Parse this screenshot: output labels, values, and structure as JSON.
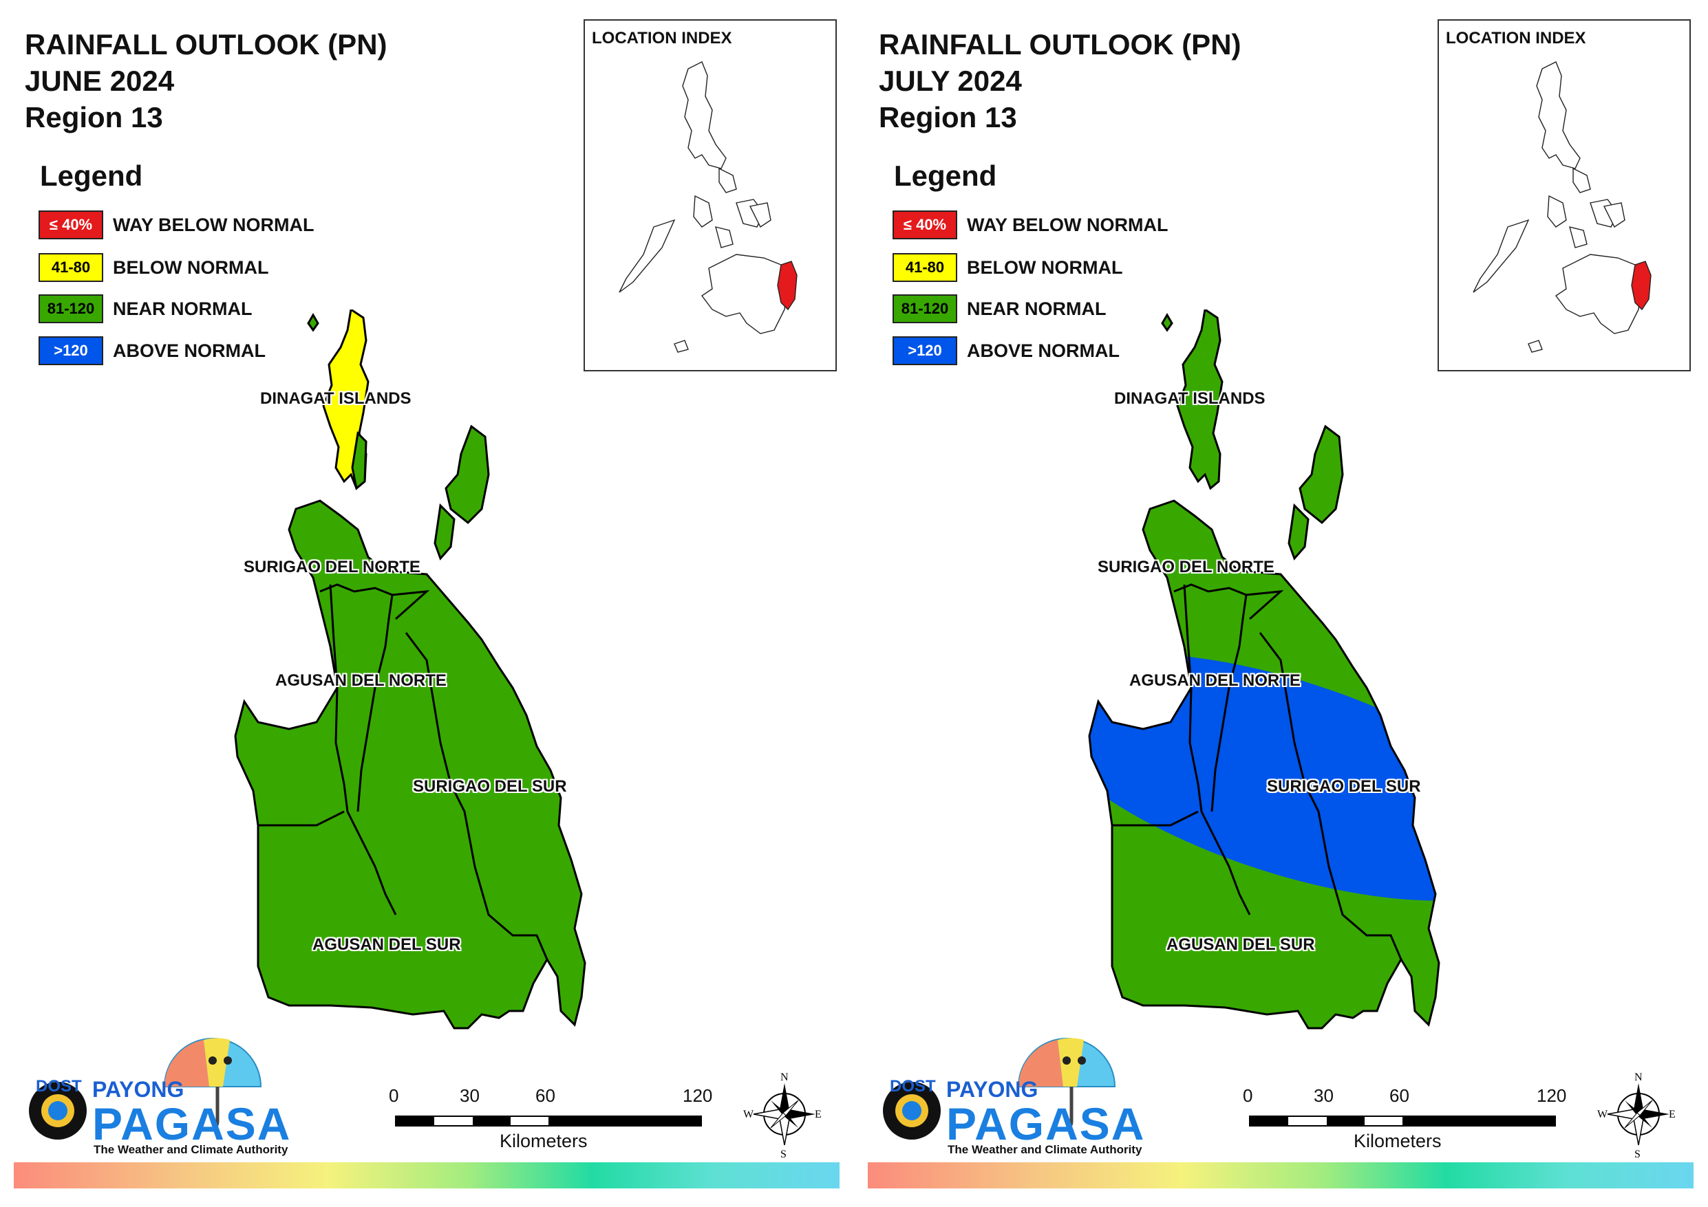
{
  "colors": {
    "way_below": "#e41a1c",
    "below": "#ffff00",
    "near": "#38a800",
    "above": "#0055ea",
    "border": "#000000"
  },
  "legend": {
    "heading": "Legend",
    "items": [
      {
        "box": "≤ 40%",
        "label": "WAY BELOW NORMAL",
        "color_key": "way_below",
        "text_color": "#ffffff"
      },
      {
        "box": "41-80",
        "label": "BELOW NORMAL",
        "color_key": "below",
        "text_color": "#000000"
      },
      {
        "box": "81-120",
        "label": "NEAR NORMAL",
        "color_key": "near",
        "text_color": "#000000"
      },
      {
        "box": ">120",
        "label": "ABOVE NORMAL",
        "color_key": "above",
        "text_color": "#ffffff"
      }
    ]
  },
  "inset": {
    "title": "LOCATION INDEX",
    "highlight_color": "#e41a1c"
  },
  "provinces": [
    "DINAGAT ISLANDS",
    "SURIGAO DEL NORTE",
    "AGUSAN DEL NORTE",
    "SURIGAO DEL SUR",
    "AGUSAN DEL SUR"
  ],
  "panels": [
    {
      "title_line1": "RAINFALL OUTLOOK (PN)",
      "title_line2": "JUNE 2024",
      "title_line3": "Region 13",
      "categories": {
        "DINAGAT ISLANDS": "below",
        "SURIGAO DEL NORTE": "near",
        "AGUSAN DEL NORTE": "near",
        "SURIGAO DEL SUR": "near",
        "AGUSAN DEL SUR": "near"
      },
      "above_normal_zone": false
    },
    {
      "title_line1": "RAINFALL OUTLOOK (PN)",
      "title_line2": "JULY 2024",
      "title_line3": "Region 13",
      "categories": {
        "DINAGAT ISLANDS": "near",
        "SURIGAO DEL NORTE": "near",
        "AGUSAN DEL NORTE": "near and above",
        "SURIGAO DEL SUR": "near and above",
        "AGUSAN DEL SUR": "near and above"
      },
      "above_normal_zone": true
    }
  ],
  "scale": {
    "ticks": [
      "0",
      "30",
      "60",
      "120"
    ],
    "units": "Kilometers"
  },
  "compass": {
    "n": "N",
    "s": "S",
    "e": "E",
    "w": "W"
  },
  "logo": {
    "dost": "DOST",
    "payong": "PAYONG",
    "pagasa": "PAGASA",
    "tagline": "The Weather and Climate Authority"
  }
}
